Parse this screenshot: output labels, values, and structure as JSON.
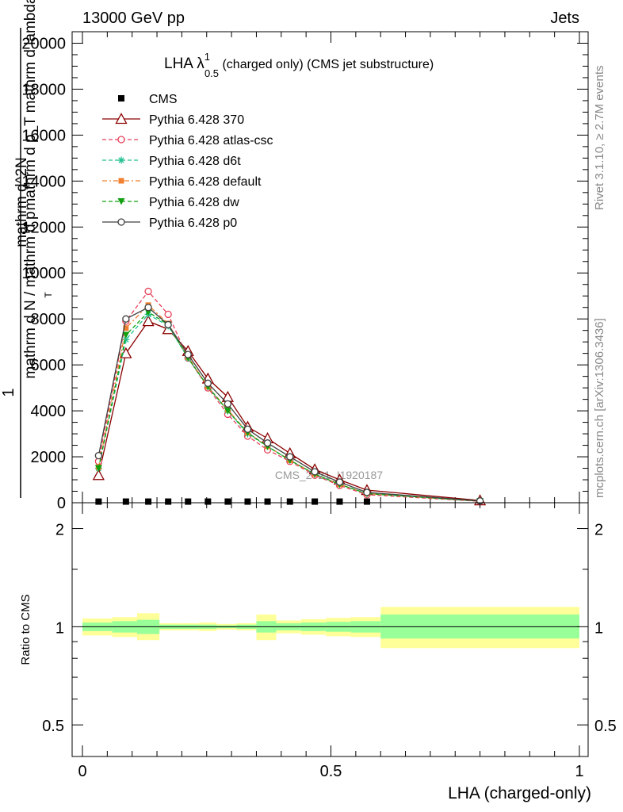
{
  "header": {
    "energy_label": "13000 GeV pp",
    "process_label": "Jets",
    "rivet_label": "Rivet 3.1.10, ≥ 2.7M events",
    "mcplots_label": "mcplots.cern.ch [arXiv:1306.3436]",
    "watermark": "CMS_2021_I1920187"
  },
  "chart_data": [
    {
      "type": "line",
      "panel": "main",
      "title_main": "LHA λ",
      "title_sup": "1",
      "title_sub": "0.5",
      "title_rest": " (charged only) (CMS jet substructure)",
      "ylabel_lines": [
        "1",
        "mathrm d N / mathrm d p",
        "T",
        "mathrm d^2N",
        "mathrm d p_T mathrm d lambda"
      ],
      "xlim": [
        0,
        1
      ],
      "ylim": [
        0,
        20500
      ],
      "yticks": [
        0,
        2000,
        4000,
        6000,
        8000,
        10000,
        12000,
        14000,
        16000,
        18000,
        20000
      ],
      "ytick_labels": [
        "0",
        "2000",
        "4000",
        "6000",
        "8000",
        "10000",
        "12000",
        "14000",
        "16000",
        "18000",
        "20000"
      ],
      "x": [
        0.0325,
        0.0875,
        0.1325,
        0.1725,
        0.2125,
        0.2525,
        0.2925,
        0.3325,
        0.3725,
        0.4175,
        0.4675,
        0.5175,
        0.5725,
        0.8
      ],
      "cms": {
        "name": "CMS",
        "x": [
          0.0325,
          0.0875,
          0.1325,
          0.1725,
          0.2125,
          0.2525,
          0.2925,
          0.3325,
          0.3725,
          0.4175,
          0.4675,
          0.5175,
          0.5725
        ],
        "values": [
          50,
          50,
          50,
          50,
          50,
          50,
          50,
          50,
          50,
          50,
          50,
          50,
          50
        ]
      },
      "series": [
        {
          "name": "Pythia 6.428 370",
          "color": "#8b0000",
          "dash": "solid",
          "marker": "triangle-open",
          "values": [
            1200,
            6500,
            7900,
            7550,
            6600,
            5400,
            4600,
            3300,
            2800,
            2150,
            1450,
            1000,
            550,
            100
          ]
        },
        {
          "name": "Pythia 6.428 atlas-csc",
          "color": "#e8405a",
          "dash": "dash",
          "marker": "circle-open",
          "values": [
            1800,
            7900,
            9200,
            8200,
            6300,
            5000,
            3850,
            2900,
            2300,
            1800,
            1200,
            750,
            350,
            60
          ]
        },
        {
          "name": "Pythia 6.428 d6t",
          "color": "#20c090",
          "dash": "dash",
          "marker": "star",
          "values": [
            1500,
            7100,
            8200,
            7700,
            6300,
            5050,
            4000,
            3000,
            2450,
            1850,
            1250,
            800,
            400,
            70
          ]
        },
        {
          "name": "Pythia 6.428 default",
          "color": "#f08030",
          "dash": "dashdot",
          "marker": "square",
          "values": [
            1550,
            7600,
            8600,
            7800,
            6350,
            5050,
            4050,
            3050,
            2450,
            1850,
            1250,
            800,
            400,
            70
          ]
        },
        {
          "name": "Pythia 6.428 dw",
          "color": "#10a010",
          "dash": "dash",
          "marker": "triangle-down",
          "values": [
            1500,
            7300,
            8300,
            7750,
            6300,
            5050,
            4000,
            3050,
            2450,
            1850,
            1250,
            800,
            400,
            70
          ]
        },
        {
          "name": "Pythia 6.428 p0",
          "color": "#404040",
          "dash": "solid",
          "marker": "circle-open",
          "values": [
            2050,
            8000,
            8500,
            7750,
            6450,
            5200,
            4300,
            3200,
            2600,
            2000,
            1350,
            900,
            450,
            80
          ]
        }
      ]
    },
    {
      "type": "area",
      "panel": "ratio",
      "ylabel": "Ratio to CMS",
      "ylim_log": [
        0.4,
        2.4
      ],
      "yticks": [
        0.5,
        1,
        2
      ],
      "ytick_labels": [
        "0.5",
        "1",
        "2"
      ],
      "xlabel": "LHA (charged-only)",
      "xticks": [
        0,
        0.5,
        1
      ],
      "xtick_labels": [
        "0",
        "0.5",
        "1"
      ],
      "bins": [
        {
          "lo": 0.0,
          "hi": 0.06,
          "inner": [
            0.97,
            1.03
          ],
          "outer": [
            0.94,
            1.06
          ]
        },
        {
          "lo": 0.06,
          "hi": 0.11,
          "inner": [
            0.96,
            1.04
          ],
          "outer": [
            0.93,
            1.07
          ]
        },
        {
          "lo": 0.11,
          "hi": 0.155,
          "inner": [
            0.95,
            1.05
          ],
          "outer": [
            0.91,
            1.1
          ]
        },
        {
          "lo": 0.155,
          "hi": 0.19,
          "inner": [
            0.985,
            1.015
          ],
          "outer": [
            0.975,
            1.025
          ]
        },
        {
          "lo": 0.19,
          "hi": 0.235,
          "inner": [
            0.985,
            1.015
          ],
          "outer": [
            0.975,
            1.025
          ]
        },
        {
          "lo": 0.235,
          "hi": 0.27,
          "inner": [
            0.985,
            1.015
          ],
          "outer": [
            0.97,
            1.03
          ]
        },
        {
          "lo": 0.27,
          "hi": 0.31,
          "inner": [
            0.99,
            1.01
          ],
          "outer": [
            0.98,
            1.02
          ]
        },
        {
          "lo": 0.31,
          "hi": 0.35,
          "inner": [
            0.985,
            1.015
          ],
          "outer": [
            0.975,
            1.025
          ]
        },
        {
          "lo": 0.35,
          "hi": 0.39,
          "inner": [
            0.96,
            1.04
          ],
          "outer": [
            0.91,
            1.09
          ]
        },
        {
          "lo": 0.39,
          "hi": 0.44,
          "inner": [
            0.975,
            1.025
          ],
          "outer": [
            0.955,
            1.045
          ]
        },
        {
          "lo": 0.44,
          "hi": 0.49,
          "inner": [
            0.97,
            1.03
          ],
          "outer": [
            0.945,
            1.055
          ]
        },
        {
          "lo": 0.49,
          "hi": 0.54,
          "inner": [
            0.965,
            1.035
          ],
          "outer": [
            0.935,
            1.065
          ]
        },
        {
          "lo": 0.54,
          "hi": 0.6,
          "inner": [
            0.96,
            1.04
          ],
          "outer": [
            0.93,
            1.07
          ]
        },
        {
          "lo": 0.6,
          "hi": 1.0,
          "inner": [
            0.92,
            1.09
          ],
          "outer": [
            0.86,
            1.15
          ]
        }
      ],
      "bins_note": "",
      "ratio_ref": 1
    }
  ]
}
